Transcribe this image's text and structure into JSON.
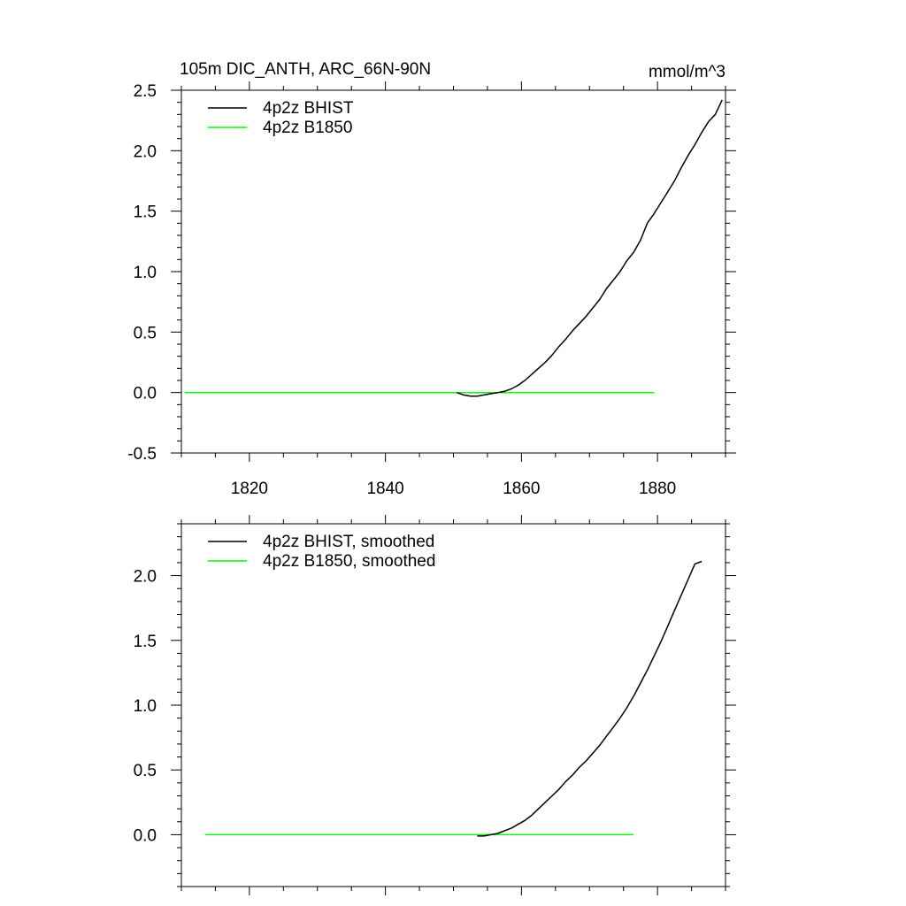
{
  "chart_data": [
    {
      "type": "line",
      "title": "105m DIC_ANTH, ARC_66N-90N",
      "units": "mmol/m^3",
      "xlim": [
        1810,
        1890
      ],
      "ylim": [
        -0.5,
        2.5
      ],
      "x_ticks": [
        1820,
        1840,
        1860,
        1880
      ],
      "y_ticks": [
        -0.5,
        0.0,
        0.5,
        1.0,
        1.5,
        2.0,
        2.5
      ],
      "grid": false,
      "legend": "top-left",
      "series": [
        {
          "name": "4p2z BHIST",
          "color": "#000000",
          "x": [
            1850.5,
            1851.5,
            1852.5,
            1853.5,
            1854.5,
            1855.5,
            1856.5,
            1857.5,
            1858.5,
            1859.5,
            1860.5,
            1861.5,
            1862.5,
            1863.5,
            1864.5,
            1865.5,
            1866.5,
            1867.5,
            1868.5,
            1869.5,
            1870.5,
            1871.5,
            1872.5,
            1873.5,
            1874.5,
            1875.5,
            1876.5,
            1877.5,
            1878.5,
            1879.5,
            1880.5,
            1881.5,
            1882.5,
            1883.5,
            1884.5,
            1885.5,
            1886.5,
            1887.5,
            1888.5,
            1889.5
          ],
          "y": [
            0.0,
            -0.02,
            -0.03,
            -0.03,
            -0.02,
            -0.01,
            0.0,
            0.01,
            0.03,
            0.06,
            0.1,
            0.15,
            0.2,
            0.25,
            0.31,
            0.38,
            0.44,
            0.51,
            0.57,
            0.63,
            0.7,
            0.77,
            0.86,
            0.93,
            1.0,
            1.09,
            1.16,
            1.26,
            1.4,
            1.48,
            1.57,
            1.66,
            1.75,
            1.86,
            1.96,
            2.05,
            2.15,
            2.24,
            2.3,
            2.42
          ]
        },
        {
          "name": "4p2z B1850",
          "color": "#00ff00",
          "x": [
            1810.5,
            1879.5
          ],
          "y": [
            0.0,
            0.0
          ]
        }
      ]
    },
    {
      "type": "line",
      "title": "",
      "xlim": [
        1810,
        1890
      ],
      "ylim": [
        -0.4,
        2.4
      ],
      "x_ticks": [
        1820,
        1840,
        1860,
        1880
      ],
      "y_ticks": [
        0.0,
        0.5,
        1.0,
        1.5,
        2.0
      ],
      "show_x_tick_labels": false,
      "grid": false,
      "legend": "top-left",
      "series": [
        {
          "name": "4p2z BHIST, smoothed",
          "color": "#000000",
          "x": [
            1853.5,
            1854.5,
            1855.5,
            1856.5,
            1857.5,
            1858.5,
            1859.5,
            1860.5,
            1861.5,
            1862.5,
            1863.5,
            1864.5,
            1865.5,
            1866.5,
            1867.5,
            1868.5,
            1869.5,
            1870.5,
            1871.5,
            1872.5,
            1873.5,
            1874.5,
            1875.5,
            1876.5,
            1877.5,
            1878.5,
            1879.5,
            1880.5,
            1881.5,
            1882.5,
            1883.5,
            1884.5,
            1885.5,
            1886.5
          ],
          "y": [
            -0.01,
            -0.01,
            0.0,
            0.01,
            0.03,
            0.05,
            0.08,
            0.11,
            0.15,
            0.2,
            0.25,
            0.3,
            0.35,
            0.41,
            0.46,
            0.52,
            0.57,
            0.63,
            0.69,
            0.76,
            0.83,
            0.9,
            0.98,
            1.07,
            1.17,
            1.27,
            1.38,
            1.49,
            1.61,
            1.73,
            1.85,
            1.97,
            2.09,
            2.11
          ]
        },
        {
          "name": "4p2z B1850, smoothed",
          "color": "#00ff00",
          "x": [
            1813.5,
            1876.5
          ],
          "y": [
            0.0,
            0.0
          ]
        }
      ]
    }
  ]
}
